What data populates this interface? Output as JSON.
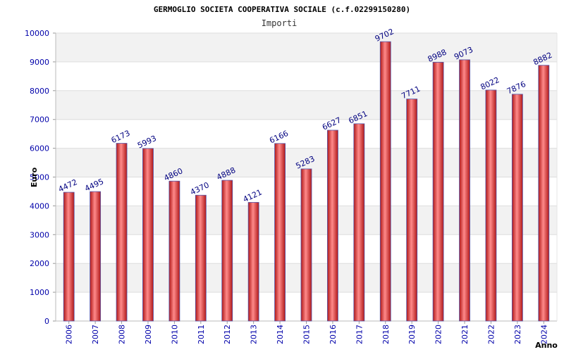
{
  "chart_data": {
    "type": "bar",
    "title": "GERMOGLIO SOCIETA COOPERATIVA SOCIALE (c.f.02299150280)",
    "subtitle": "Importi",
    "xlabel": "Anno",
    "ylabel": "Euro",
    "categories": [
      "2006",
      "2007",
      "2008",
      "2009",
      "2010",
      "2011",
      "2012",
      "2013",
      "2014",
      "2015",
      "2016",
      "2017",
      "2018",
      "2019",
      "2020",
      "2021",
      "2022",
      "2023",
      "2024"
    ],
    "values": [
      4472,
      4495,
      6173,
      5993,
      4860,
      4370,
      4888,
      4121,
      6166,
      5283,
      6627,
      6851,
      9702,
      7711,
      8988,
      9073,
      8022,
      7876,
      8882
    ],
    "ylim": [
      0,
      10000
    ],
    "yticks": [
      0,
      1000,
      2000,
      3000,
      4000,
      5000,
      6000,
      7000,
      8000,
      9000,
      10000
    ],
    "grid": true,
    "legend": "none",
    "colors": {
      "bar_fill": "#e23030",
      "bar_edge": "#5555aa",
      "band": "#f2f2f2",
      "tick_text": "#0000aa",
      "data_label": "#000080"
    }
  }
}
